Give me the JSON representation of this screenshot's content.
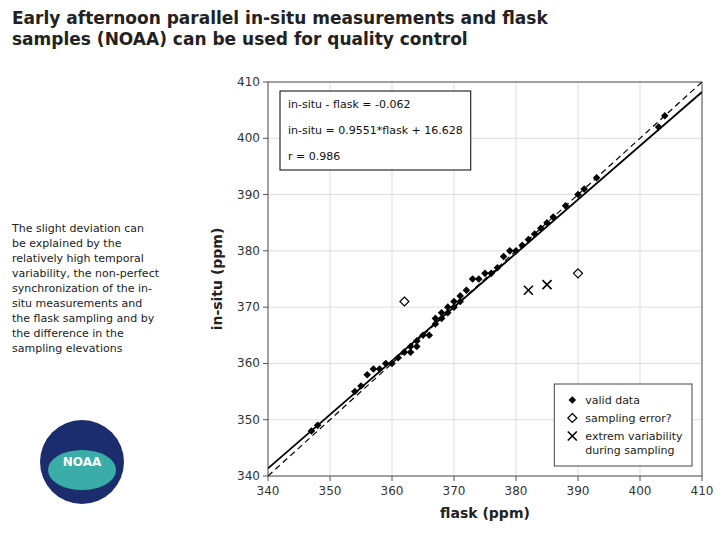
{
  "chart_data": {
    "type": "scatter",
    "title": "Early afternoon parallel in-situ measurements and flask\nsamples (NOAA) can be used for quality control",
    "x_label": "flask (ppm)",
    "y_label": "in-situ (ppm)",
    "xlim": [
      340,
      410
    ],
    "ylim": [
      340,
      410
    ],
    "xticks": [
      340,
      350,
      360,
      370,
      380,
      390,
      400,
      410
    ],
    "yticks": [
      340,
      350,
      360,
      370,
      380,
      390,
      400,
      410
    ],
    "grid": true,
    "legend": "lower right",
    "annotations": [
      "in-situ - flask = -0.062\n\nin-situ = 0.9551*flask + 16.628\n\nr = 0.986",
      "The slight deviation can\nbe explained by the\nrelatively high temporal\nvariability, the non-perfect\nsynchronization of the in-\nsitu measurements and\nthe flask sampling and by\nthe difference in the\nsampling elevations",
      "NOAA"
    ],
    "series": [
      {
        "name": "valid data",
        "type": "scatter",
        "marker": "diamond",
        "color": "#000000",
        "x": [
          347,
          348,
          354,
          355,
          356,
          357,
          358,
          359,
          360,
          361,
          362,
          363,
          363,
          364,
          364,
          365,
          366,
          367,
          367,
          368,
          368,
          369,
          369,
          370,
          370,
          371,
          371,
          372,
          373,
          374,
          375,
          376,
          377,
          378,
          379,
          380,
          381,
          382,
          383,
          384,
          385,
          386,
          388,
          390,
          391,
          393,
          403,
          404
        ],
        "values": [
          348,
          349,
          355,
          356,
          358,
          359,
          359,
          360,
          360,
          361,
          362,
          362,
          363,
          363,
          364,
          365,
          365,
          367,
          368,
          368,
          369,
          369,
          370,
          370,
          371,
          371,
          372,
          373,
          375,
          375,
          376,
          376,
          377,
          379,
          380,
          380,
          381,
          382,
          383,
          384,
          385,
          386,
          388,
          390,
          391,
          393,
          402,
          404
        ]
      },
      {
        "name": "sampling error?",
        "type": "scatter",
        "marker": "diamond-open",
        "color": "#000000",
        "x": [
          362,
          390
        ],
        "values": [
          371,
          376
        ]
      },
      {
        "name": "extrem variability\nduring sampling",
        "type": "scatter",
        "marker": "x",
        "color": "#000000",
        "x": [
          382,
          385
        ],
        "values": [
          373,
          374
        ]
      },
      {
        "type": "line",
        "line_style": "dashed",
        "color": "#000000",
        "x": [
          340,
          410
        ],
        "values": [
          340,
          410
        ]
      },
      {
        "type": "line",
        "line_style": "solid",
        "color": "#000000",
        "x": [
          340,
          410
        ],
        "values": [
          341.362,
          408.219
        ]
      }
    ]
  }
}
